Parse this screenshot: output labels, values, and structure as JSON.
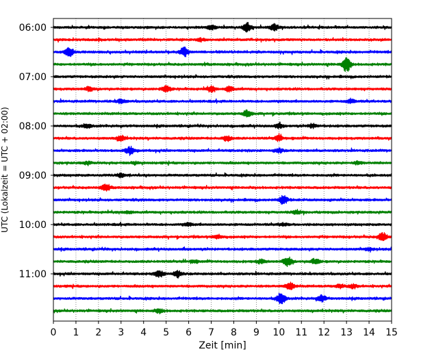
{
  "chart_data": {
    "type": "line",
    "title": "",
    "xlabel": "Zeit  [min]",
    "ylabel": "UTC (Lokalzeit = UTC + 02:00)",
    "xlim": [
      0,
      15
    ],
    "x_ticks": [
      "0",
      "1",
      "2",
      "3",
      "4",
      "5",
      "6",
      "7",
      "8",
      "9",
      "10",
      "11",
      "12",
      "13",
      "14",
      "15"
    ],
    "y_ticks": [
      "06:00",
      "07:00",
      "08:00",
      "09:00",
      "10:00",
      "11:00"
    ],
    "grid": "vertical dotted at each minute",
    "trace_interval_minutes": 15,
    "trace_colors": [
      "#000000",
      "#ff0000",
      "#0000ff",
      "#008000"
    ],
    "series": [
      {
        "time": "06:00",
        "color": "#000000",
        "events": [
          [
            7.0,
            0.35
          ],
          [
            8.6,
            0.7
          ],
          [
            9.8,
            0.5
          ]
        ]
      },
      {
        "time": "06:15",
        "color": "#ff0000",
        "events": [
          [
            6.5,
            0.2
          ]
        ]
      },
      {
        "time": "06:30",
        "color": "#0000ff",
        "events": [
          [
            0.7,
            0.8
          ],
          [
            5.8,
            0.7
          ]
        ]
      },
      {
        "time": "06:45",
        "color": "#008000",
        "events": [
          [
            13.0,
            1.2
          ]
        ]
      },
      {
        "time": "07:00",
        "color": "#000000",
        "events": []
      },
      {
        "time": "07:15",
        "color": "#ff0000",
        "events": [
          [
            1.6,
            0.3
          ],
          [
            5.0,
            0.5
          ],
          [
            7.0,
            0.4
          ],
          [
            7.8,
            0.4
          ]
        ]
      },
      {
        "time": "07:30",
        "color": "#0000ff",
        "events": [
          [
            3.0,
            0.3
          ],
          [
            13.2,
            0.3
          ]
        ]
      },
      {
        "time": "07:45",
        "color": "#008000",
        "events": [
          [
            8.6,
            0.5
          ]
        ]
      },
      {
        "time": "08:00",
        "color": "#000000",
        "events": [
          [
            1.5,
            0.3
          ],
          [
            10.0,
            0.3
          ],
          [
            11.5,
            0.3
          ]
        ]
      },
      {
        "time": "08:15",
        "color": "#ff0000",
        "events": [
          [
            3.0,
            0.4
          ],
          [
            7.7,
            0.4
          ],
          [
            10.0,
            0.4
          ]
        ]
      },
      {
        "time": "08:30",
        "color": "#0000ff",
        "events": [
          [
            3.4,
            0.6
          ],
          [
            10.0,
            0.3
          ]
        ]
      },
      {
        "time": "08:45",
        "color": "#008000",
        "events": [
          [
            1.5,
            0.2
          ],
          [
            3.6,
            0.2
          ],
          [
            13.5,
            0.2
          ]
        ]
      },
      {
        "time": "09:00",
        "color": "#000000",
        "events": [
          [
            3.0,
            0.3
          ]
        ]
      },
      {
        "time": "09:15",
        "color": "#ff0000",
        "events": [
          [
            2.3,
            0.5
          ]
        ]
      },
      {
        "time": "09:30",
        "color": "#0000ff",
        "events": [
          [
            10.2,
            0.7
          ]
        ]
      },
      {
        "time": "09:45",
        "color": "#008000",
        "events": [
          [
            3.3,
            0.2
          ],
          [
            10.8,
            0.3
          ]
        ]
      },
      {
        "time": "10:00",
        "color": "#000000",
        "events": [
          [
            6.0,
            0.2
          ],
          [
            10.2,
            0.2
          ]
        ]
      },
      {
        "time": "10:15",
        "color": "#ff0000",
        "events": [
          [
            7.3,
            0.3
          ],
          [
            14.6,
            0.7
          ]
        ]
      },
      {
        "time": "10:30",
        "color": "#0000ff",
        "events": [
          [
            14.0,
            0.2
          ]
        ]
      },
      {
        "time": "10:45",
        "color": "#008000",
        "events": [
          [
            6.2,
            0.2
          ],
          [
            9.2,
            0.3
          ],
          [
            10.4,
            0.7
          ],
          [
            11.6,
            0.4
          ]
        ]
      },
      {
        "time": "11:00",
        "color": "#000000",
        "events": [
          [
            4.7,
            0.5
          ],
          [
            5.5,
            0.5
          ]
        ]
      },
      {
        "time": "11:15",
        "color": "#ff0000",
        "events": [
          [
            10.5,
            0.6
          ],
          [
            12.7,
            0.3
          ],
          [
            13.3,
            0.3
          ]
        ]
      },
      {
        "time": "11:30",
        "color": "#0000ff",
        "events": [
          [
            10.1,
            0.9
          ],
          [
            11.9,
            0.5
          ]
        ]
      },
      {
        "time": "11:45",
        "color": "#008000",
        "events": [
          [
            4.7,
            0.3
          ]
        ]
      }
    ]
  }
}
